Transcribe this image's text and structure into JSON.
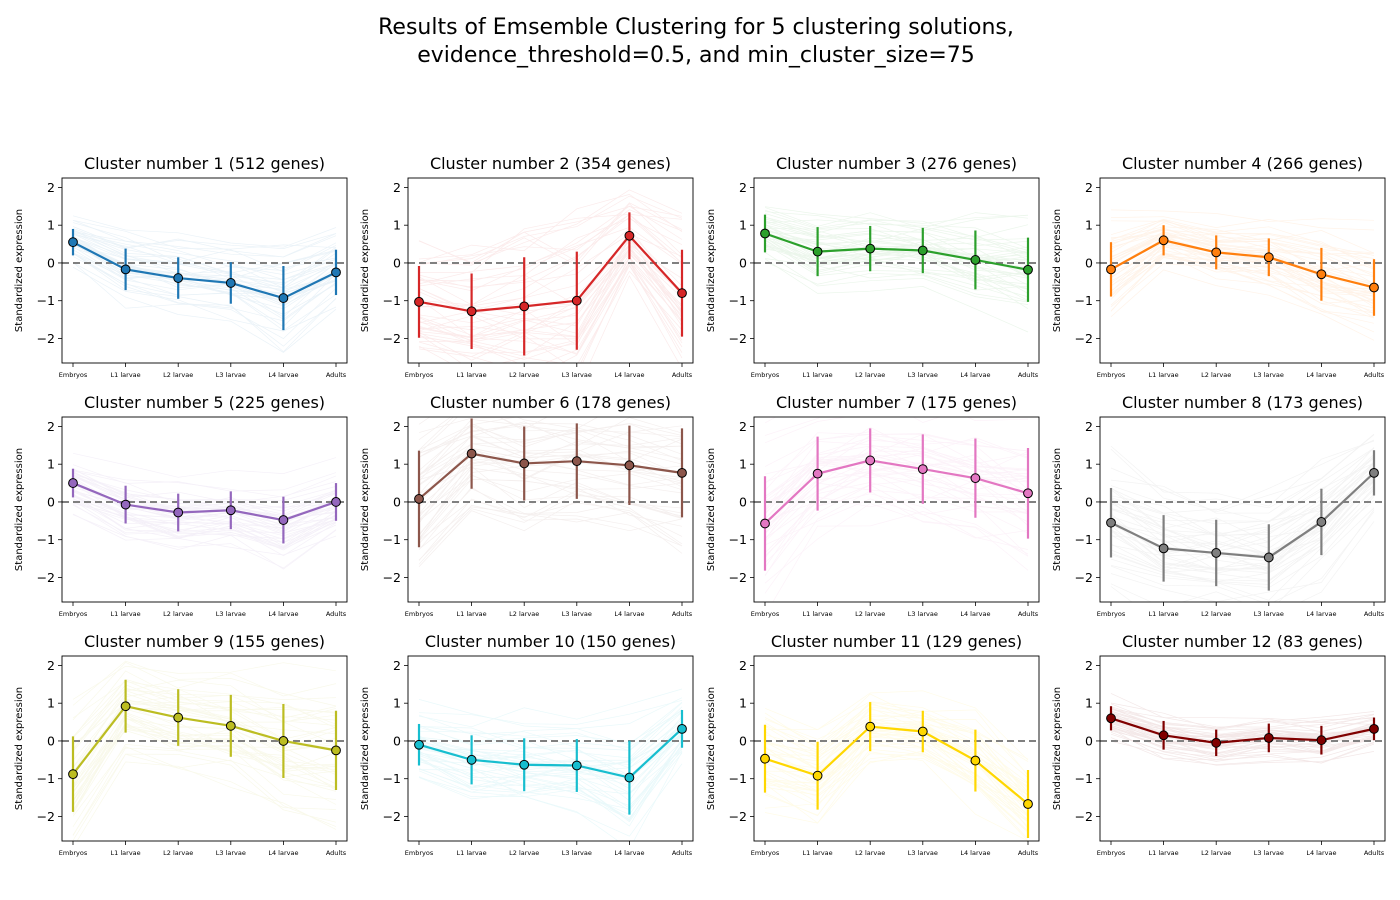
{
  "figure": {
    "title": "Results of Emsemble Clustering for 5 clustering solutions,\nevidence_threshold=0.5, and min_cluster_size=75"
  },
  "chart_data": [
    {
      "type": "line",
      "title": "Cluster number 1 (512 genes)",
      "ylabel": "Standardized expression",
      "categories": [
        "Embryos",
        "L1 larvae",
        "L2 larvae",
        "L3 larvae",
        "L4 larvae",
        "Adults"
      ],
      "mean": [
        0.55,
        -0.17,
        -0.4,
        -0.53,
        -0.93,
        -0.25
      ],
      "sd": [
        0.35,
        0.55,
        0.55,
        0.55,
        0.85,
        0.6
      ],
      "color": "#1f77b4",
      "ylim": [
        -2.65,
        2.25
      ],
      "yticks": [
        -2,
        -1,
        0,
        1,
        2
      ],
      "reference_line": 0
    },
    {
      "type": "line",
      "title": "Cluster number 2 (354 genes)",
      "ylabel": "Standardized expression",
      "categories": [
        "Embryos",
        "L1 larvae",
        "L2 larvae",
        "L3 larvae",
        "L4 larvae",
        "Adults"
      ],
      "mean": [
        -1.03,
        -1.28,
        -1.15,
        -1.0,
        0.72,
        -0.8
      ],
      "sd": [
        0.95,
        1.0,
        1.3,
        1.3,
        0.62,
        1.15
      ],
      "color": "#d62728",
      "ylim": [
        -2.65,
        2.25
      ],
      "yticks": [
        -2,
        -1,
        0,
        1,
        2
      ],
      "reference_line": 0
    },
    {
      "type": "line",
      "title": "Cluster number 3 (276 genes)",
      "ylabel": "Standardized expression",
      "categories": [
        "Embryos",
        "L1 larvae",
        "L2 larvae",
        "L3 larvae",
        "L4 larvae",
        "Adults"
      ],
      "mean": [
        0.78,
        0.3,
        0.38,
        0.33,
        0.08,
        -0.18
      ],
      "sd": [
        0.5,
        0.65,
        0.6,
        0.6,
        0.78,
        0.85
      ],
      "color": "#2ca02c",
      "ylim": [
        -2.65,
        2.25
      ],
      "yticks": [
        -2,
        -1,
        0,
        1,
        2
      ],
      "reference_line": 0
    },
    {
      "type": "line",
      "title": "Cluster number 4 (266 genes)",
      "ylabel": "Standardized expression",
      "categories": [
        "Embryos",
        "L1 larvae",
        "L2 larvae",
        "L3 larvae",
        "L4 larvae",
        "Adults"
      ],
      "mean": [
        -0.17,
        0.6,
        0.28,
        0.15,
        -0.3,
        -0.65
      ],
      "sd": [
        0.72,
        0.4,
        0.45,
        0.5,
        0.7,
        0.75
      ],
      "color": "#ff7f0e",
      "ylim": [
        -2.65,
        2.25
      ],
      "yticks": [
        -2,
        -1,
        0,
        1,
        2
      ],
      "reference_line": 0
    },
    {
      "type": "line",
      "title": "Cluster number 5 (225 genes)",
      "ylabel": "Standardized expression",
      "categories": [
        "Embryos",
        "L1 larvae",
        "L2 larvae",
        "L3 larvae",
        "L4 larvae",
        "Adults"
      ],
      "mean": [
        0.5,
        -0.07,
        -0.28,
        -0.22,
        -0.48,
        0.0
      ],
      "sd": [
        0.38,
        0.5,
        0.5,
        0.5,
        0.62,
        0.5
      ],
      "color": "#9467bd",
      "ylim": [
        -2.65,
        2.25
      ],
      "yticks": [
        -2,
        -1,
        0,
        1,
        2
      ],
      "reference_line": 0
    },
    {
      "type": "line",
      "title": "Cluster number 6 (178 genes)",
      "ylabel": "Standardized expression",
      "categories": [
        "Embryos",
        "L1 larvae",
        "L2 larvae",
        "L3 larvae",
        "L4 larvae",
        "Adults"
      ],
      "mean": [
        0.08,
        1.28,
        1.02,
        1.08,
        0.97,
        0.77
      ],
      "sd": [
        1.28,
        0.93,
        0.98,
        1.0,
        1.05,
        1.18
      ],
      "color": "#8c564b",
      "ylim": [
        -2.65,
        2.25
      ],
      "yticks": [
        -2,
        -1,
        0,
        1,
        2
      ],
      "reference_line": 0
    },
    {
      "type": "line",
      "title": "Cluster number 7 (175 genes)",
      "ylabel": "Standardized expression",
      "categories": [
        "Embryos",
        "L1 larvae",
        "L2 larvae",
        "L3 larvae",
        "L4 larvae",
        "Adults"
      ],
      "mean": [
        -0.57,
        0.75,
        1.1,
        0.87,
        0.63,
        0.23
      ],
      "sd": [
        1.25,
        0.98,
        0.85,
        0.92,
        1.05,
        1.2
      ],
      "color": "#e377c2",
      "ylim": [
        -2.65,
        2.25
      ],
      "yticks": [
        -2,
        -1,
        0,
        1,
        2
      ],
      "reference_line": 0
    },
    {
      "type": "line",
      "title": "Cluster number 8 (173 genes)",
      "ylabel": "Standardized expression",
      "categories": [
        "Embryos",
        "L1 larvae",
        "L2 larvae",
        "L3 larvae",
        "L4 larvae",
        "Adults"
      ],
      "mean": [
        -0.55,
        -1.23,
        -1.35,
        -1.47,
        -0.53,
        0.77
      ],
      "sd": [
        0.92,
        0.88,
        0.88,
        0.88,
        0.88,
        0.6
      ],
      "color": "#7f7f7f",
      "ylim": [
        -2.65,
        2.25
      ],
      "yticks": [
        -2,
        -1,
        0,
        1,
        2
      ],
      "reference_line": 0
    },
    {
      "type": "line",
      "title": "Cluster number 9 (155 genes)",
      "ylabel": "Standardized expression",
      "categories": [
        "Embryos",
        "L1 larvae",
        "L2 larvae",
        "L3 larvae",
        "L4 larvae",
        "Adults"
      ],
      "mean": [
        -0.88,
        0.92,
        0.62,
        0.4,
        0.0,
        -0.25
      ],
      "sd": [
        1.0,
        0.7,
        0.75,
        0.82,
        0.98,
        1.05
      ],
      "color": "#bcbd22",
      "ylim": [
        -2.65,
        2.25
      ],
      "yticks": [
        -2,
        -1,
        0,
        1,
        2
      ],
      "reference_line": 0
    },
    {
      "type": "line",
      "title": "Cluster number 10 (150 genes)",
      "ylabel": "Standardized expression",
      "categories": [
        "Embryos",
        "L1 larvae",
        "L2 larvae",
        "L3 larvae",
        "L4 larvae",
        "Adults"
      ],
      "mean": [
        -0.1,
        -0.5,
        -0.63,
        -0.65,
        -0.97,
        0.32
      ],
      "sd": [
        0.55,
        0.65,
        0.7,
        0.7,
        0.98,
        0.5
      ],
      "color": "#17becf",
      "ylim": [
        -2.65,
        2.25
      ],
      "yticks": [
        -2,
        -1,
        0,
        1,
        2
      ],
      "reference_line": 0
    },
    {
      "type": "line",
      "title": "Cluster number 11 (129 genes)",
      "ylabel": "Standardized expression",
      "categories": [
        "Embryos",
        "L1 larvae",
        "L2 larvae",
        "L3 larvae",
        "L4 larvae",
        "Adults"
      ],
      "mean": [
        -0.47,
        -0.92,
        0.38,
        0.25,
        -0.52,
        -1.67
      ],
      "sd": [
        0.9,
        0.9,
        0.65,
        0.55,
        0.82,
        0.9
      ],
      "color": "#ffd700",
      "ylim": [
        -2.65,
        2.25
      ],
      "yticks": [
        -2,
        -1,
        0,
        1,
        2
      ],
      "reference_line": 0
    },
    {
      "type": "line",
      "title": "Cluster number 12 (83 genes)",
      "ylabel": "Standardized expression",
      "categories": [
        "Embryos",
        "L1 larvae",
        "L2 larvae",
        "L3 larvae",
        "L4 larvae",
        "Adults"
      ],
      "mean": [
        0.6,
        0.15,
        -0.05,
        0.08,
        0.02,
        0.32
      ],
      "sd": [
        0.32,
        0.38,
        0.35,
        0.38,
        0.38,
        0.3
      ],
      "color": "#800000",
      "ylim": [
        -2.65,
        2.25
      ],
      "yticks": [
        -2,
        -1,
        0,
        1,
        2
      ],
      "reference_line": 0
    }
  ]
}
